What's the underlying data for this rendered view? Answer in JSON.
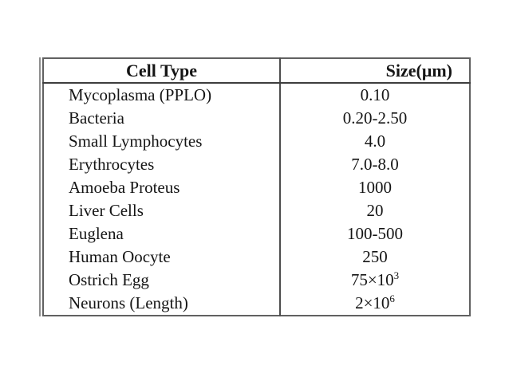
{
  "page": {
    "background_color": "#ffffff",
    "text_color": "#151515",
    "border_outer_color": "#616161",
    "border_divider_color": "#4d4d4d"
  },
  "table": {
    "headers": {
      "cell_type": "Cell Type",
      "size": "Size(μm)"
    },
    "rows": [
      {
        "cell_type": "Mycoplasma (PPLO)",
        "size": "0.10"
      },
      {
        "cell_type": "Bacteria",
        "size": "0.20-2.50"
      },
      {
        "cell_type": "Small Lymphocytes",
        "size": "4.0"
      },
      {
        "cell_type": "Erythrocytes",
        "size": "7.0-8.0"
      },
      {
        "cell_type": "Amoeba Proteus",
        "size": "1000"
      },
      {
        "cell_type": "Liver Cells",
        "size": "20"
      },
      {
        "cell_type": "Euglena",
        "size": "100-500"
      },
      {
        "cell_type": "Human Oocyte",
        "size": "250"
      },
      {
        "cell_type": "Ostrich Egg",
        "size": "75×10",
        "size_exp": "3"
      },
      {
        "cell_type": "Neurons (Length)",
        "size": "2×10",
        "size_exp": "6"
      }
    ]
  }
}
